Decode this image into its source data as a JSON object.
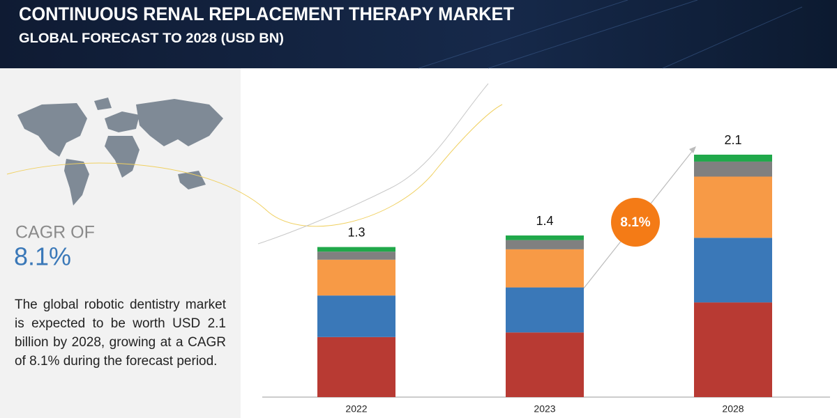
{
  "header": {
    "title": "CONTINUOUS RENAL REPLACEMENT THERAPY MARKET",
    "subtitle": "GLOBAL FORECAST TO 2028 (USD BN)"
  },
  "sidebar": {
    "cagr_label": "CAGR OF",
    "cagr_value": "8.1%",
    "description": "The global robotic dentistry market is expected to be worth USD 2.1 billion by 2028, growing at a CAGR of 8.1% during the forecast period."
  },
  "chart_data": {
    "type": "stacked_bar",
    "categories": [
      "2022",
      "2023",
      "2028"
    ],
    "series": [
      {
        "color": "#b83a33",
        "values": [
          0.52,
          0.56,
          0.82
        ]
      },
      {
        "color": "#3a78b8",
        "values": [
          0.36,
          0.39,
          0.56
        ]
      },
      {
        "color": "#f79a46",
        "values": [
          0.31,
          0.33,
          0.53
        ]
      },
      {
        "color": "#808080",
        "values": [
          0.07,
          0.08,
          0.13
        ]
      },
      {
        "color": "#20a84a",
        "values": [
          0.04,
          0.04,
          0.06
        ]
      }
    ],
    "totals": [
      1.3,
      1.4,
      2.1
    ],
    "cagr_bubble": "8.1%",
    "cagr_color": "#f47b16"
  }
}
